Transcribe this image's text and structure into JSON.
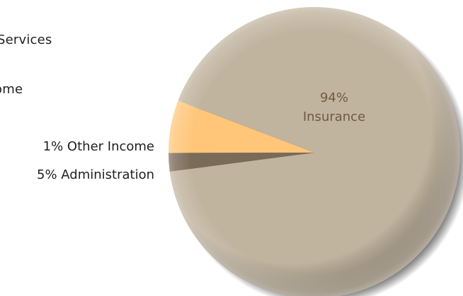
{
  "legend": {
    "services_label": "Services",
    "income_label": "ome"
  },
  "chart_data": {
    "type": "pie",
    "slices": [
      {
        "label": "Insurance",
        "value": 94,
        "display_pct": "94%",
        "color": "#c1b49f"
      },
      {
        "label": "Other Income",
        "value": 1,
        "display_pct": "1%",
        "color": "#7a6a58"
      },
      {
        "label": "Administration",
        "value": 5,
        "display_pct": "5%",
        "color": "#ffc67a"
      }
    ],
    "outer_labels": [
      "1%  Other Income",
      "5% Administration"
    ],
    "inner_label": {
      "pct": "94%",
      "name": "Insurance"
    }
  }
}
